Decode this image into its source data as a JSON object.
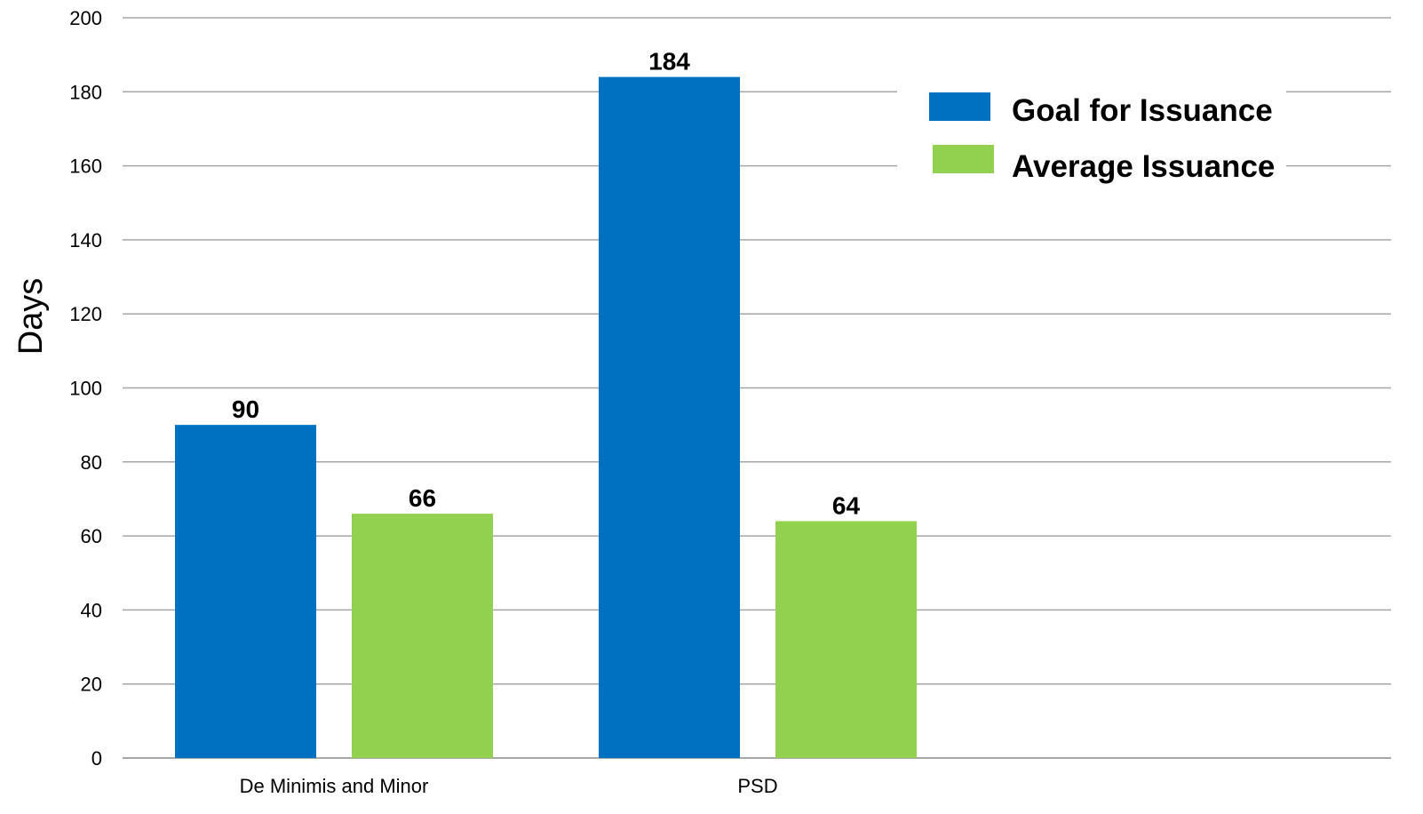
{
  "chart_data": {
    "type": "bar",
    "categories": [
      "De Minimis and Minor",
      "PSD"
    ],
    "series": [
      {
        "name": "Goal for Issuance",
        "values": [
          90,
          184
        ],
        "color": "#0070c0"
      },
      {
        "name": "Average Issuance",
        "values": [
          66,
          64
        ],
        "color": "#92d050"
      }
    ],
    "ylabel": "Days",
    "ylim": [
      0,
      200
    ],
    "yticks": [
      0,
      20,
      40,
      60,
      80,
      100,
      120,
      140,
      160,
      180,
      200
    ],
    "grid": true,
    "legend": "top-right"
  }
}
